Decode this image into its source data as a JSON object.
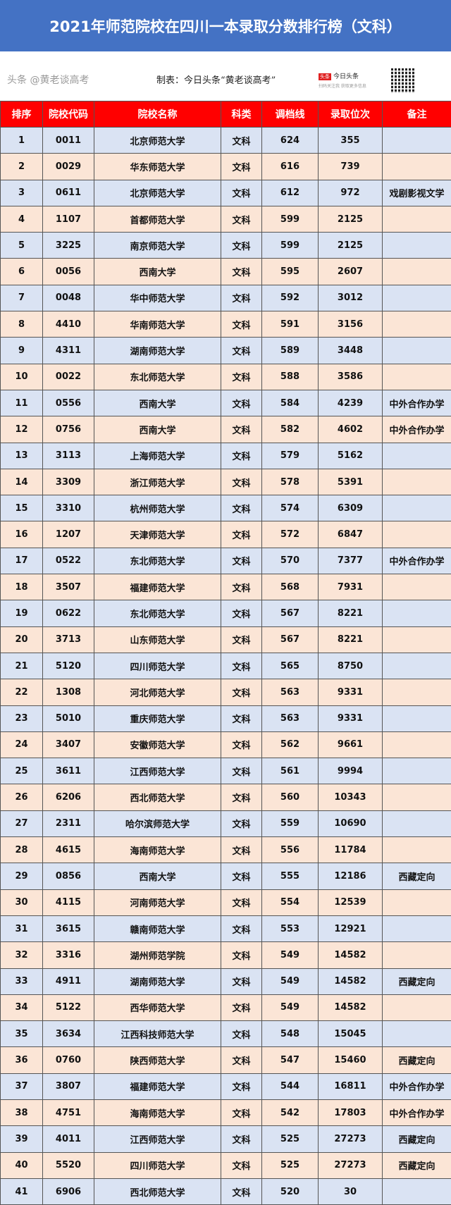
{
  "title": "2021年师范院校在四川一本录取分数排行榜（文科）",
  "credit": "制表：今日头条“黄老谈高考”",
  "brand": {
    "logo": "头条",
    "name": "今日头条",
    "tagline": "扫码关注我 获取更多信息"
  },
  "watermark": "头条 @黄老谈高考",
  "columns": [
    "排序",
    "院校代码",
    "院校名称",
    "科类",
    "调档线",
    "录取位次",
    "备注"
  ],
  "rows": [
    [
      "1",
      "0011",
      "北京师范大学",
      "文科",
      "624",
      "355",
      ""
    ],
    [
      "2",
      "0029",
      "华东师范大学",
      "文科",
      "616",
      "739",
      ""
    ],
    [
      "3",
      "0611",
      "北京师范大学",
      "文科",
      "612",
      "972",
      "戏剧影视文学"
    ],
    [
      "4",
      "1107",
      "首都师范大学",
      "文科",
      "599",
      "2125",
      ""
    ],
    [
      "5",
      "3225",
      "南京师范大学",
      "文科",
      "599",
      "2125",
      ""
    ],
    [
      "6",
      "0056",
      "西南大学",
      "文科",
      "595",
      "2607",
      ""
    ],
    [
      "7",
      "0048",
      "华中师范大学",
      "文科",
      "592",
      "3012",
      ""
    ],
    [
      "8",
      "4410",
      "华南师范大学",
      "文科",
      "591",
      "3156",
      ""
    ],
    [
      "9",
      "4311",
      "湖南师范大学",
      "文科",
      "589",
      "3448",
      ""
    ],
    [
      "10",
      "0022",
      "东北师范大学",
      "文科",
      "588",
      "3586",
      ""
    ],
    [
      "11",
      "0556",
      "西南大学",
      "文科",
      "584",
      "4239",
      "中外合作办学"
    ],
    [
      "12",
      "0756",
      "西南大学",
      "文科",
      "582",
      "4602",
      "中外合作办学"
    ],
    [
      "13",
      "3113",
      "上海师范大学",
      "文科",
      "579",
      "5162",
      ""
    ],
    [
      "14",
      "3309",
      "浙江师范大学",
      "文科",
      "578",
      "5391",
      ""
    ],
    [
      "15",
      "3310",
      "杭州师范大学",
      "文科",
      "574",
      "6309",
      ""
    ],
    [
      "16",
      "1207",
      "天津师范大学",
      "文科",
      "572",
      "6847",
      ""
    ],
    [
      "17",
      "0522",
      "东北师范大学",
      "文科",
      "570",
      "7377",
      "中外合作办学"
    ],
    [
      "18",
      "3507",
      "福建师范大学",
      "文科",
      "568",
      "7931",
      ""
    ],
    [
      "19",
      "0622",
      "东北师范大学",
      "文科",
      "567",
      "8221",
      ""
    ],
    [
      "20",
      "3713",
      "山东师范大学",
      "文科",
      "567",
      "8221",
      ""
    ],
    [
      "21",
      "5120",
      "四川师范大学",
      "文科",
      "565",
      "8750",
      ""
    ],
    [
      "22",
      "1308",
      "河北师范大学",
      "文科",
      "563",
      "9331",
      ""
    ],
    [
      "23",
      "5010",
      "重庆师范大学",
      "文科",
      "563",
      "9331",
      ""
    ],
    [
      "24",
      "3407",
      "安徽师范大学",
      "文科",
      "562",
      "9661",
      ""
    ],
    [
      "25",
      "3611",
      "江西师范大学",
      "文科",
      "561",
      "9994",
      ""
    ],
    [
      "26",
      "6206",
      "西北师范大学",
      "文科",
      "560",
      "10343",
      ""
    ],
    [
      "27",
      "2311",
      "哈尔滨师范大学",
      "文科",
      "559",
      "10690",
      ""
    ],
    [
      "28",
      "4615",
      "海南师范大学",
      "文科",
      "556",
      "11784",
      ""
    ],
    [
      "29",
      "0856",
      "西南大学",
      "文科",
      "555",
      "12186",
      "西藏定向"
    ],
    [
      "30",
      "4115",
      "河南师范大学",
      "文科",
      "554",
      "12539",
      ""
    ],
    [
      "31",
      "3615",
      "赣南师范大学",
      "文科",
      "553",
      "12921",
      ""
    ],
    [
      "32",
      "3316",
      "湖州师范学院",
      "文科",
      "549",
      "14582",
      ""
    ],
    [
      "33",
      "4911",
      "湖南师范大学",
      "文科",
      "549",
      "14582",
      "西藏定向"
    ],
    [
      "34",
      "5122",
      "西华师范大学",
      "文科",
      "549",
      "14582",
      ""
    ],
    [
      "35",
      "3634",
      "江西科技师范大学",
      "文科",
      "548",
      "15045",
      ""
    ],
    [
      "36",
      "0760",
      "陕西师范大学",
      "文科",
      "547",
      "15460",
      "西藏定向"
    ],
    [
      "37",
      "3807",
      "福建师范大学",
      "文科",
      "544",
      "16811",
      "中外合作办学"
    ],
    [
      "38",
      "4751",
      "海南师范大学",
      "文科",
      "542",
      "17803",
      "中外合作办学"
    ],
    [
      "39",
      "4011",
      "江西师范大学",
      "文科",
      "525",
      "27273",
      "西藏定向"
    ],
    [
      "40",
      "5520",
      "四川师范大学",
      "文科",
      "525",
      "27273",
      "西藏定向"
    ],
    [
      "41",
      "6906",
      "西北师范大学",
      "文科",
      "520",
      "30",
      ""
    ]
  ],
  "colors": {
    "title_bg": "#4472c4",
    "header_bg": "#ff0000",
    "row_odd": "#dae3f3",
    "row_even": "#fbe5d6"
  }
}
